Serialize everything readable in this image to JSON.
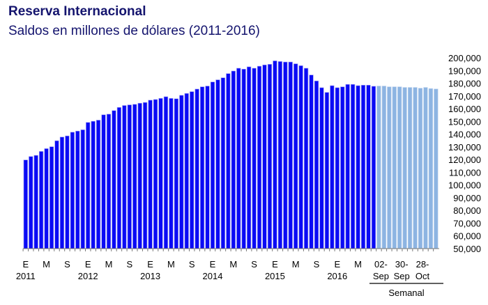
{
  "chart_data": {
    "type": "bar",
    "title": "Reserva Internacional",
    "subtitle": "Saldos en millones de dólares (2011-2016)",
    "ylim": [
      50000,
      200000
    ],
    "yticks": [
      "50,000",
      "60,000",
      "70,000",
      "80,000",
      "90,000",
      "100,000",
      "110,000",
      "120,000",
      "130,000",
      "140,000",
      "150,000",
      "160,000",
      "170,000",
      "180,000",
      "190,000",
      "200,000"
    ],
    "ytick_values": [
      50000,
      60000,
      70000,
      80000,
      90000,
      100000,
      110000,
      120000,
      130000,
      140000,
      150000,
      160000,
      170000,
      180000,
      190000,
      200000
    ],
    "grid": false,
    "y_axis_side": "right",
    "colors": {
      "monthly": "#0a0af5",
      "weekly": "#8db4e2",
      "title": "#14146e"
    },
    "monthly": {
      "month_labels": [
        "E",
        "M",
        "S",
        "E",
        "M",
        "S",
        "E",
        "M",
        "S",
        "E",
        "M",
        "S",
        "E",
        "M",
        "S",
        "E",
        "M"
      ],
      "year_labels": [
        "2011",
        "2012",
        "2013",
        "2014",
        "2015",
        "2016"
      ],
      "values": [
        119700,
        122400,
        123300,
        126400,
        128600,
        130100,
        134800,
        137700,
        138600,
        141500,
        142400,
        143400,
        149200,
        150100,
        151000,
        155200,
        155700,
        158500,
        161000,
        162500,
        163000,
        163400,
        164300,
        164900,
        166700,
        167200,
        168100,
        169400,
        168100,
        167800,
        170500,
        172000,
        173400,
        175400,
        177200,
        177800,
        181000,
        182700,
        184300,
        187600,
        189600,
        191800,
        191100,
        192900,
        191800,
        193400,
        194400,
        194900,
        197600,
        197100,
        196700,
        196700,
        195300,
        193800,
        191800,
        186500,
        181800,
        176500,
        172800,
        178100,
        176500,
        177200,
        179100,
        179100,
        178100,
        178500,
        178500,
        177600
      ]
    },
    "weekly": {
      "labels": [
        [
          "02-",
          "Sep"
        ],
        [
          "30-",
          "Sep"
        ],
        [
          "28-",
          "Oct"
        ]
      ],
      "group_label": "Semanal",
      "values": [
        177800,
        177800,
        177200,
        177200,
        177200,
        176700,
        176700,
        176700,
        176100,
        176700,
        175800,
        175500
      ]
    }
  }
}
